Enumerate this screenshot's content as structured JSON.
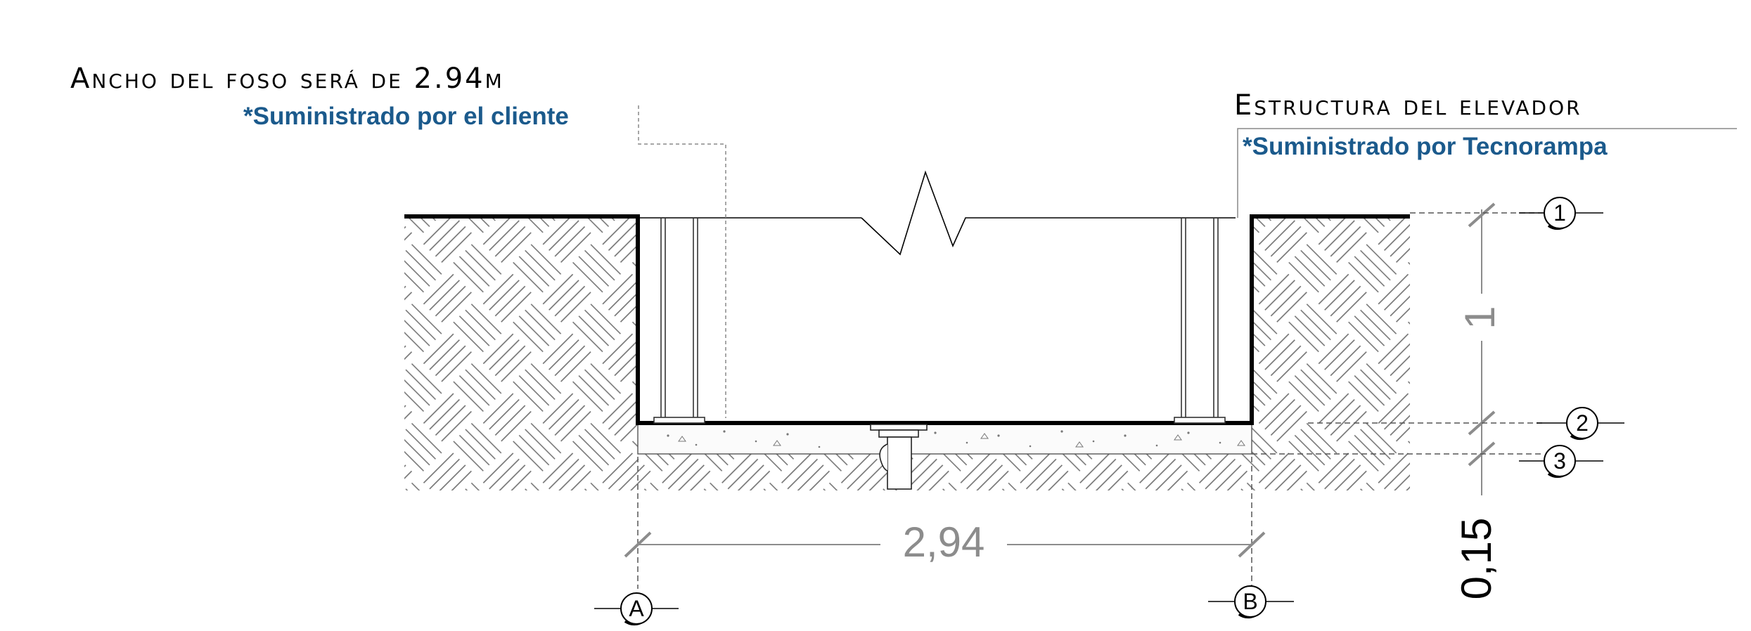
{
  "annotations": {
    "pit_width_note": "Ancho del foso será de 2.94m",
    "pit_supplier": "*Suministrado por el cliente",
    "structure_note": "Estructura del elevador",
    "structure_supplier": "*Suministrado por Tecnorampa"
  },
  "dimensions": {
    "pit_width": "2,94",
    "pit_depth": "1",
    "slab_thickness": "0,15"
  },
  "level_markers": [
    "1",
    "2",
    "3"
  ],
  "grid_markers": [
    "A",
    "B"
  ],
  "colors": {
    "note_blue": "#1b5a8c",
    "dimension_grey": "#8c8c8c",
    "hatch_grey": "#6f6f6f",
    "line_black": "#000000"
  }
}
